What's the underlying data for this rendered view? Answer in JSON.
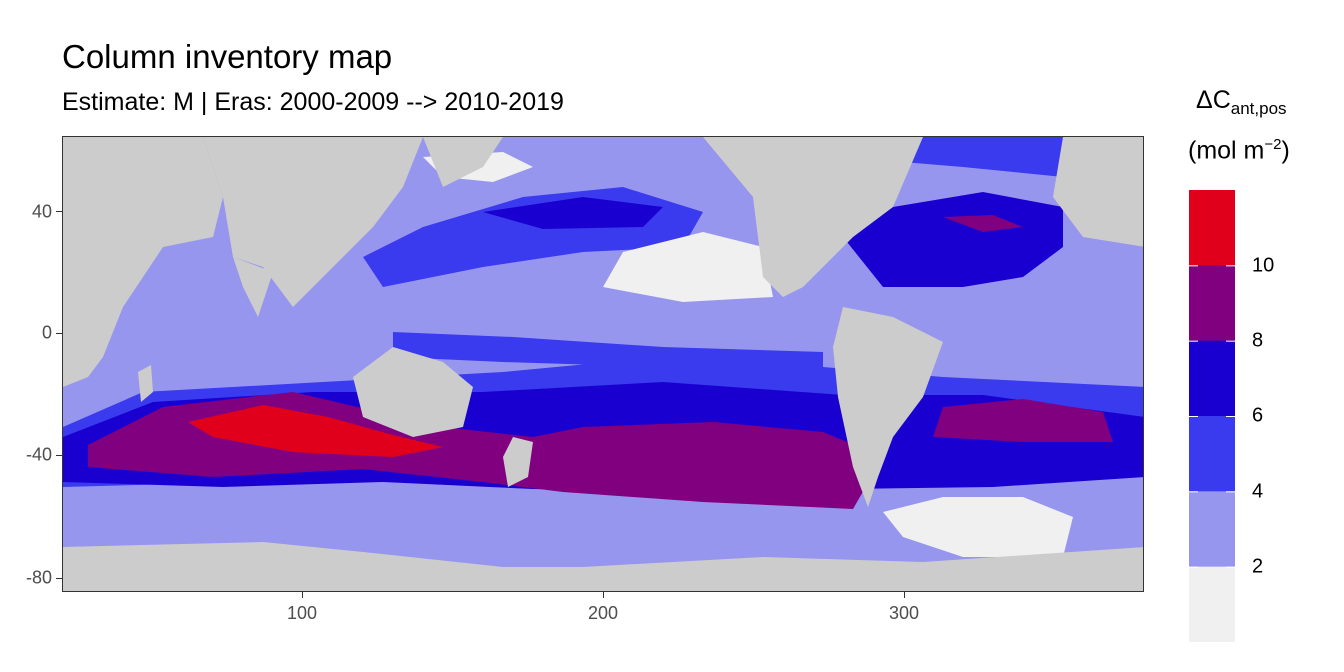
{
  "title": "Column inventory map",
  "subtitle": "Estimate: M  | Eras: 2000-2009 --> 2010-2019",
  "axes": {
    "x": {
      "ticks": [
        "100",
        "200",
        "300"
      ],
      "range": [
        20,
        380
      ]
    },
    "y": {
      "ticks": [
        "40",
        "0",
        "-40",
        "-80"
      ],
      "range": [
        -85,
        65
      ]
    }
  },
  "legend": {
    "title_main": "ΔC",
    "title_sub": "ant,pos",
    "units_pre": "(mol m",
    "units_sup": "−2",
    "units_post": ")",
    "labels": [
      "10",
      "8",
      "6",
      "4",
      "2"
    ],
    "colors": [
      "#e0001c",
      "#800080",
      "#1a00d0",
      "#3a3aee",
      "#9696ee",
      "#f0f0f0"
    ]
  },
  "land_color": "#cccccc"
}
